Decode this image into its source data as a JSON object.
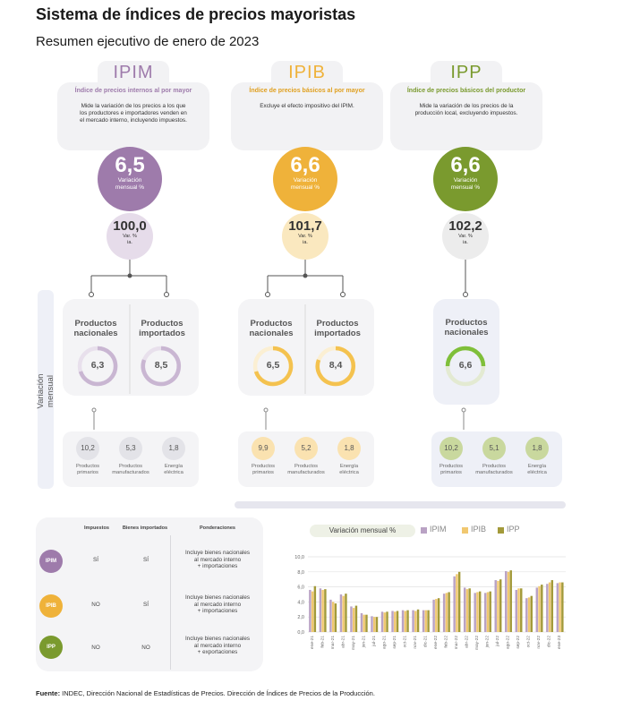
{
  "header": {
    "title": "Sistema de índices de precios mayoristas",
    "subtitle": "Resumen ejecutivo de enero de 2023"
  },
  "indices": [
    {
      "name": "IPIM",
      "color": "#9e7bab",
      "light": "#e6dcea",
      "card_title": "Índice de precios internos al por mayor",
      "card_lines": [
        "Mide la variación de los precios a los que",
        "los productores e importadores venden en",
        "el mercado interno, incluyendo impuestos."
      ],
      "big_value": "6,5",
      "big_label_1": "Variación",
      "big_label_2": "mensual %",
      "small_value": "100,0",
      "small_label_1": "Var. %",
      "small_label_2": "ia.",
      "prod_1": [
        "Productos",
        "nacionales"
      ],
      "prod_1_value": "6,3",
      "prod_2": [
        "Productos",
        "importados"
      ],
      "prod_2_value": "8,5",
      "sub": [
        {
          "value": "10,2",
          "label": [
            "Productos",
            "primarios"
          ]
        },
        {
          "value": "5,3",
          "label": [
            "Productos",
            "manufacturados"
          ]
        },
        {
          "value": "1,8",
          "label": [
            "Energía",
            "eléctrica"
          ]
        }
      ]
    },
    {
      "name": "IPIB",
      "color": "#efb23a",
      "light": "#fae8bf",
      "card_title": "Índice de precios básicos al por mayor",
      "card_lines": [
        "Excluye el efecto impositivo del IPIM."
      ],
      "big_value": "6,6",
      "big_label_1": "Variación",
      "big_label_2": "mensual %",
      "small_value": "101,7",
      "small_label_1": "Var. %",
      "small_label_2": "ia.",
      "prod_1": [
        "Productos",
        "nacionales"
      ],
      "prod_1_value": "6,5",
      "prod_2": [
        "Productos",
        "importados"
      ],
      "prod_2_value": "8,4",
      "sub": [
        {
          "value": "9,9",
          "label": [
            "Productos",
            "primarios"
          ]
        },
        {
          "value": "5,2",
          "label": [
            "Productos",
            "manufacturados"
          ]
        },
        {
          "value": "1,8",
          "label": [
            "Energía",
            "eléctrica"
          ]
        }
      ]
    },
    {
      "name": "IPP",
      "color": "#7a9a2e",
      "light": "#e5ebd4",
      "card_title": "Índice de precios básicos del productor",
      "card_lines": [
        "Mide la variación de los precios de la",
        "producción local, excluyendo impuestos."
      ],
      "big_value": "6,6",
      "big_label_1": "Variación",
      "big_label_2": "mensual %",
      "small_value": "102,2",
      "small_label_1": "Var. %",
      "small_label_2": "ia.",
      "prod_1": [
        "Productos",
        "nacionales"
      ],
      "prod_1_value": "6,6",
      "sub": [
        {
          "value": "10,2",
          "label": [
            "Productos",
            "primarios"
          ]
        },
        {
          "value": "5,1",
          "label": [
            "Productos",
            "manufacturados"
          ]
        },
        {
          "value": "1,8",
          "label": [
            "Energía",
            "eléctrica"
          ]
        }
      ]
    }
  ],
  "side_label": "Variación mensual",
  "table": {
    "headers": [
      "Impuestos",
      "Bienes importados",
      "Ponderaciones"
    ],
    "rows": [
      {
        "tag": "IPIM",
        "color": "#9e7bab",
        "impuestos": "SÍ",
        "importados": "SÍ",
        "pond": [
          "Incluye bienes nacionales",
          "al mercado interno",
          "+ importaciones"
        ]
      },
      {
        "tag": "IPIB",
        "color": "#efb23a",
        "impuestos": "NO",
        "importados": "SÍ",
        "pond": [
          "Incluye bienes nacionales",
          "al mercado interno",
          "+ importaciones"
        ]
      },
      {
        "tag": "IPP",
        "color": "#7a9a2e",
        "impuestos": "NO",
        "importados": "NO",
        "pond": [
          "Incluye bienes nacionales",
          "al mercado interno",
          "+ exportaciones"
        ]
      }
    ]
  },
  "chart_data": {
    "type": "bar",
    "title": "Variación mensual %",
    "ylim": [
      0,
      10
    ],
    "yticks": [
      "0,0",
      "2,0",
      "4,0",
      "6,0",
      "8,0",
      "10,0"
    ],
    "grid": true,
    "legend_position": "top",
    "categories": [
      "ene-21",
      "feb-21",
      "mar-21",
      "abr-21",
      "may-21",
      "jun-21",
      "jul-21",
      "ago-21",
      "sep-21",
      "oct-21",
      "nov-21",
      "dic-21",
      "ene-22",
      "feb-22",
      "mar-22",
      "abr-22",
      "may-22",
      "jun-22",
      "jul-22",
      "ago-22",
      "sep-22",
      "oct-22",
      "nov-22",
      "dic-22",
      "ene-23"
    ],
    "series": [
      {
        "name": "IPIM",
        "color": "#b9a2c4",
        "values": [
          5.6,
          5.8,
          4.3,
          5.0,
          3.4,
          2.5,
          2.1,
          2.7,
          2.8,
          2.9,
          2.9,
          2.9,
          4.3,
          5.1,
          7.4,
          5.9,
          5.2,
          5.2,
          6.9,
          8.1,
          5.6,
          4.5,
          5.9,
          6.4,
          6.5
        ]
      },
      {
        "name": "IPIB",
        "color": "#f1c870",
        "values": [
          5.4,
          5.6,
          4.0,
          4.8,
          3.2,
          2.3,
          2.0,
          2.6,
          2.7,
          2.8,
          2.8,
          2.9,
          4.4,
          5.2,
          7.7,
          5.7,
          5.3,
          5.3,
          6.8,
          8.0,
          5.8,
          4.6,
          6.1,
          6.6,
          6.6
        ]
      },
      {
        "name": "IPP",
        "color": "#a39a3a",
        "values": [
          6.1,
          5.7,
          3.8,
          5.1,
          3.5,
          2.3,
          2.0,
          2.7,
          2.8,
          2.9,
          3.0,
          2.9,
          4.5,
          5.3,
          8.0,
          5.8,
          5.4,
          5.4,
          7.0,
          8.2,
          5.8,
          4.8,
          6.3,
          6.9,
          6.6
        ]
      }
    ]
  },
  "source": {
    "bold": "Fuente:",
    "text": " INDEC, Dirección Nacional de Estadísticas de Precios. Dirección de Índices de Precios de la Producción."
  }
}
